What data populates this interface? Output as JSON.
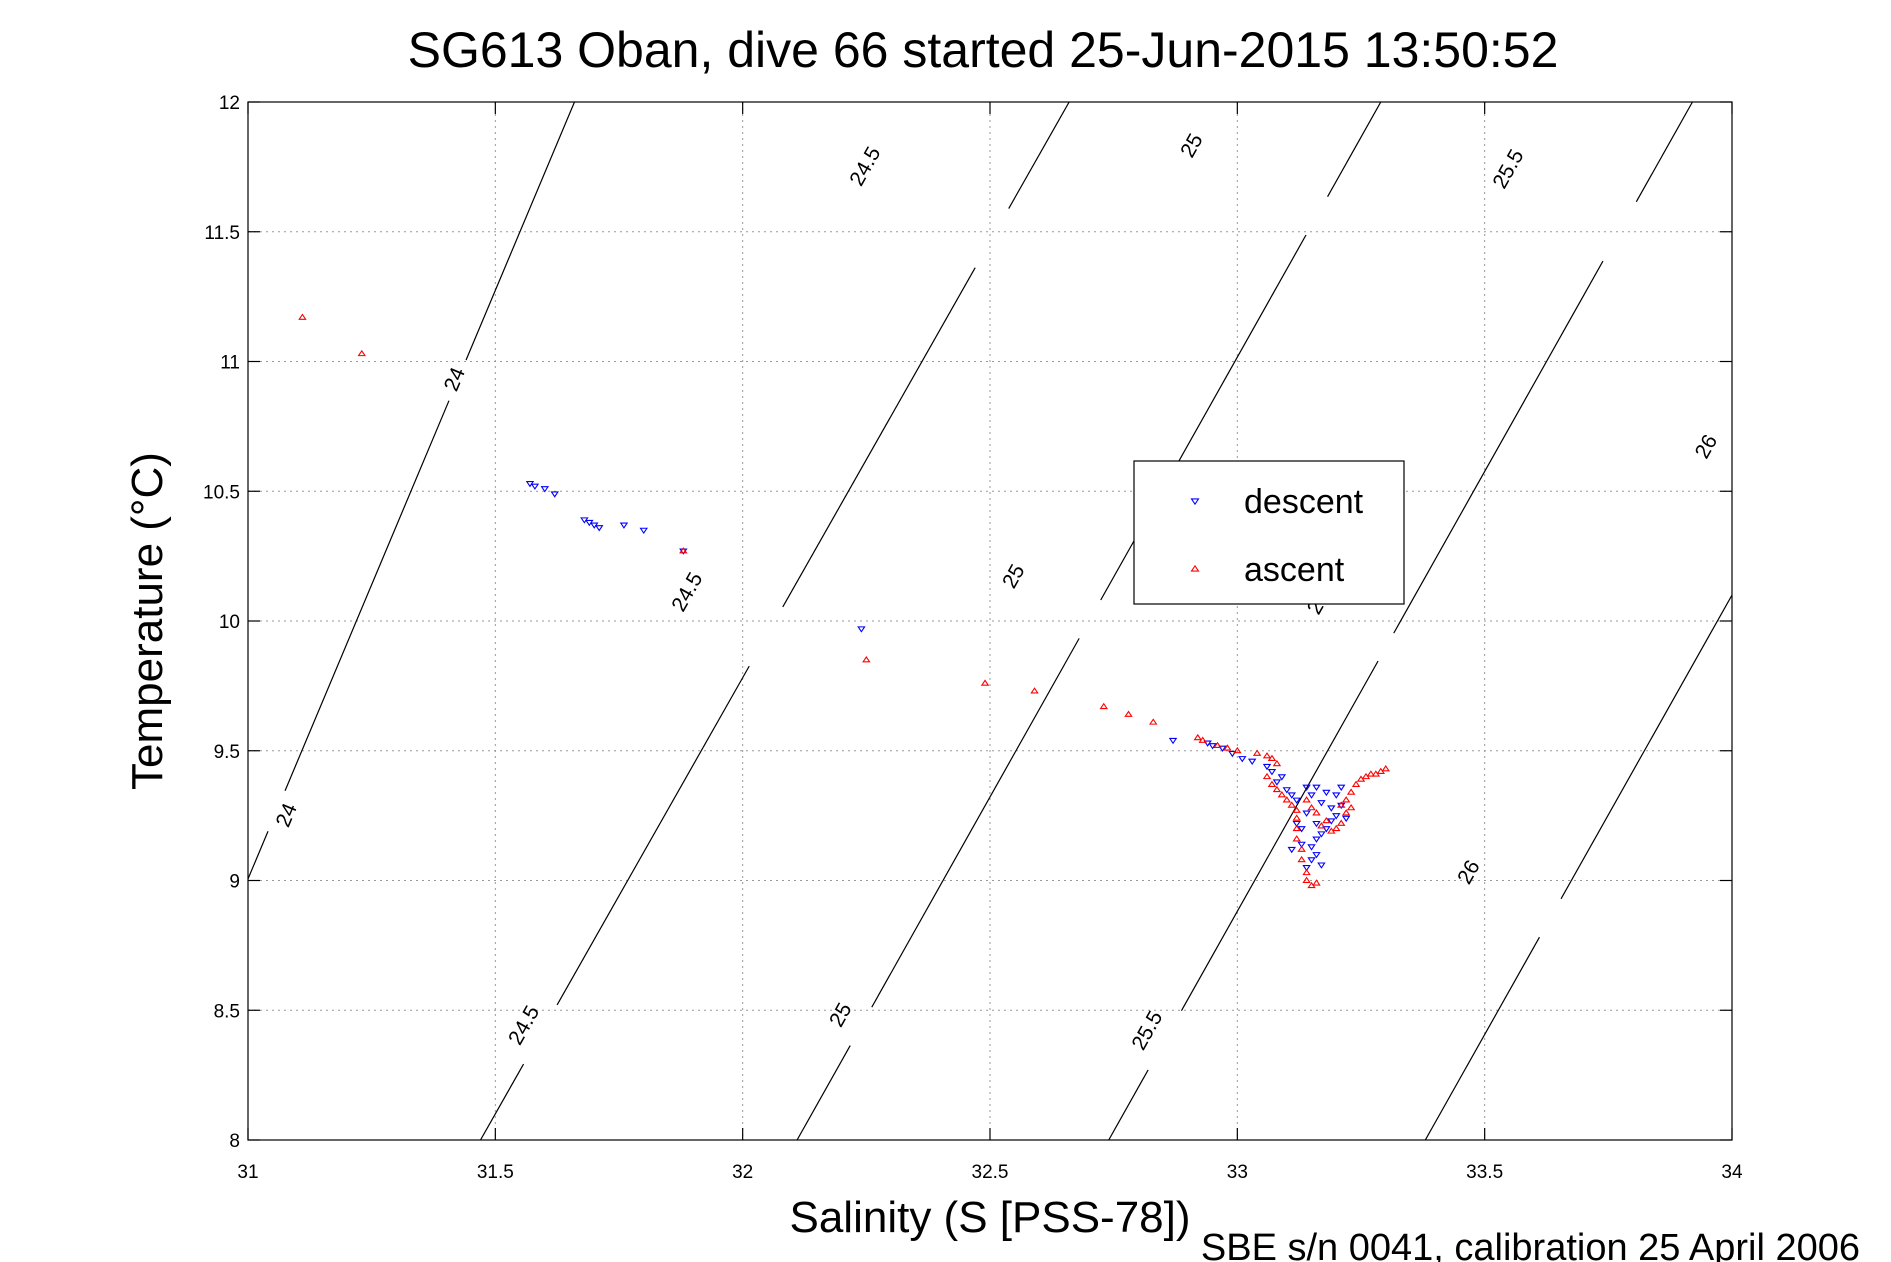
{
  "chart_data": {
    "type": "scatter",
    "title": "SG613 Oban, dive 66 started 25-Jun-2015 13:50:52",
    "xlabel": "Salinity (S [PSS-78])",
    "ylabel": "Temperature (°C)",
    "footer": "SBE s/n 0041, calibration 25 April 2006",
    "xlim": [
      31,
      34
    ],
    "ylim": [
      8,
      12
    ],
    "xticks": [
      31,
      31.5,
      32,
      32.5,
      33,
      33.5,
      34
    ],
    "xtick_labels": [
      "31",
      "31.5",
      "32",
      "32.5",
      "33",
      "33.5",
      "34"
    ],
    "yticks": [
      8,
      8.5,
      9,
      9.5,
      10,
      10.5,
      11,
      11.5,
      12
    ],
    "ytick_labels": [
      "8",
      "8.5",
      "9",
      "9.5",
      "10",
      "10.5",
      "11",
      "11.5",
      "12"
    ],
    "grid": true,
    "legend_position": "center-right",
    "density_contours": [
      {
        "level": "24",
        "points": [
          [
            30.97,
            8.87
          ],
          [
            31.66,
            12.0
          ]
        ],
        "labels": [
          {
            "text": "24",
            "x": 31.08,
            "y": 9.25
          },
          {
            "text": "24",
            "x": 31.42,
            "y": 10.93
          }
        ]
      },
      {
        "level": "24.5",
        "points": [
          [
            31.47,
            8.0
          ],
          [
            32.66,
            12.0
          ]
        ],
        "labels": [
          {
            "text": "24.5",
            "x": 31.56,
            "y": 8.44
          },
          {
            "text": "24.5",
            "x": 31.89,
            "y": 10.11
          },
          {
            "text": "24.5",
            "x": 32.25,
            "y": 11.75
          }
        ]
      },
      {
        "level": "25",
        "points": [
          [
            32.11,
            8.0
          ],
          [
            33.29,
            12.0
          ]
        ],
        "labels": [
          {
            "text": "25",
            "x": 32.2,
            "y": 8.48
          },
          {
            "text": "25",
            "x": 32.55,
            "y": 10.17
          },
          {
            "text": "25",
            "x": 32.91,
            "y": 11.83
          }
        ]
      },
      {
        "level": "25.5",
        "points": [
          [
            32.74,
            8.0
          ],
          [
            33.92,
            12.0
          ]
        ],
        "labels": [
          {
            "text": "25.5",
            "x": 32.82,
            "y": 8.42
          },
          {
            "text": "2",
            "x": 33.16,
            "y": 10.05
          },
          {
            "text": "25.5",
            "x": 33.55,
            "y": 11.74
          }
        ]
      },
      {
        "level": "26",
        "points": [
          [
            33.38,
            8.0
          ],
          [
            34.0,
            10.1
          ]
        ],
        "labels": [
          {
            "text": "26",
            "x": 33.47,
            "y": 9.03
          },
          {
            "text": "26",
            "x": 33.95,
            "y": 10.67
          }
        ]
      }
    ],
    "series": [
      {
        "name": "descent",
        "color": "#0000ff",
        "marker": "triangle-down",
        "points": [
          [
            31.57,
            10.53
          ],
          [
            31.58,
            10.52
          ],
          [
            31.6,
            10.51
          ],
          [
            31.62,
            10.49
          ],
          [
            31.68,
            10.39
          ],
          [
            31.69,
            10.38
          ],
          [
            31.7,
            10.37
          ],
          [
            31.71,
            10.36
          ],
          [
            31.76,
            10.37
          ],
          [
            31.8,
            10.35
          ],
          [
            31.88,
            10.27
          ],
          [
            32.24,
            9.97
          ],
          [
            32.87,
            9.54
          ],
          [
            32.94,
            9.53
          ],
          [
            32.95,
            9.52
          ],
          [
            32.97,
            9.51
          ],
          [
            32.99,
            9.49
          ],
          [
            33.01,
            9.47
          ],
          [
            33.03,
            9.46
          ],
          [
            33.07,
            9.42
          ],
          [
            33.08,
            9.38
          ],
          [
            33.1,
            9.35
          ],
          [
            33.11,
            9.33
          ],
          [
            33.12,
            9.31
          ],
          [
            33.14,
            9.36
          ],
          [
            33.15,
            9.33
          ],
          [
            33.16,
            9.36
          ],
          [
            33.17,
            9.3
          ],
          [
            33.18,
            9.34
          ],
          [
            33.19,
            9.28
          ],
          [
            33.2,
            9.25
          ],
          [
            33.21,
            9.29
          ],
          [
            33.2,
            9.33
          ],
          [
            33.19,
            9.23
          ],
          [
            33.18,
            9.2
          ],
          [
            33.17,
            9.18
          ],
          [
            33.16,
            9.16
          ],
          [
            33.15,
            9.13
          ],
          [
            33.15,
            9.08
          ],
          [
            33.14,
            9.05
          ],
          [
            33.16,
            9.1
          ],
          [
            33.17,
            9.06
          ],
          [
            33.13,
            9.2
          ],
          [
            33.14,
            9.26
          ],
          [
            33.12,
            9.22
          ],
          [
            33.13,
            9.14
          ],
          [
            33.11,
            9.12
          ],
          [
            33.16,
            9.22
          ],
          [
            33.22,
            9.24
          ],
          [
            33.21,
            9.36
          ],
          [
            33.09,
            9.4
          ],
          [
            33.06,
            9.44
          ]
        ]
      },
      {
        "name": "ascent",
        "color": "#ff0000",
        "marker": "triangle-up",
        "points": [
          [
            31.11,
            11.17
          ],
          [
            31.23,
            11.03
          ],
          [
            31.88,
            10.27
          ],
          [
            32.25,
            9.85
          ],
          [
            32.49,
            9.76
          ],
          [
            32.59,
            9.73
          ],
          [
            32.73,
            9.67
          ],
          [
            32.78,
            9.64
          ],
          [
            32.83,
            9.61
          ],
          [
            32.92,
            9.55
          ],
          [
            32.93,
            9.54
          ],
          [
            32.96,
            9.52
          ],
          [
            32.98,
            9.51
          ],
          [
            33.0,
            9.5
          ],
          [
            33.04,
            9.49
          ],
          [
            33.06,
            9.48
          ],
          [
            33.07,
            9.47
          ],
          [
            33.08,
            9.45
          ],
          [
            33.06,
            9.4
          ],
          [
            33.07,
            9.37
          ],
          [
            33.08,
            9.35
          ],
          [
            33.09,
            9.33
          ],
          [
            33.1,
            9.31
          ],
          [
            33.11,
            9.29
          ],
          [
            33.12,
            9.27
          ],
          [
            33.12,
            9.24
          ],
          [
            33.12,
            9.2
          ],
          [
            33.12,
            9.16
          ],
          [
            33.13,
            9.12
          ],
          [
            33.13,
            9.08
          ],
          [
            33.14,
            9.03
          ],
          [
            33.14,
            9.0
          ],
          [
            33.15,
            8.98
          ],
          [
            33.16,
            8.99
          ],
          [
            33.17,
            9.21
          ],
          [
            33.18,
            9.23
          ],
          [
            33.19,
            9.19
          ],
          [
            33.2,
            9.2
          ],
          [
            33.21,
            9.22
          ],
          [
            33.22,
            9.26
          ],
          [
            33.22,
            9.31
          ],
          [
            33.23,
            9.34
          ],
          [
            33.24,
            9.37
          ],
          [
            33.25,
            9.39
          ],
          [
            33.26,
            9.4
          ],
          [
            33.27,
            9.41
          ],
          [
            33.28,
            9.41
          ],
          [
            33.29,
            9.42
          ],
          [
            33.3,
            9.43
          ],
          [
            33.14,
            9.31
          ],
          [
            33.15,
            9.28
          ],
          [
            33.16,
            9.26
          ],
          [
            33.21,
            9.29
          ],
          [
            33.23,
            9.28
          ]
        ]
      }
    ]
  }
}
